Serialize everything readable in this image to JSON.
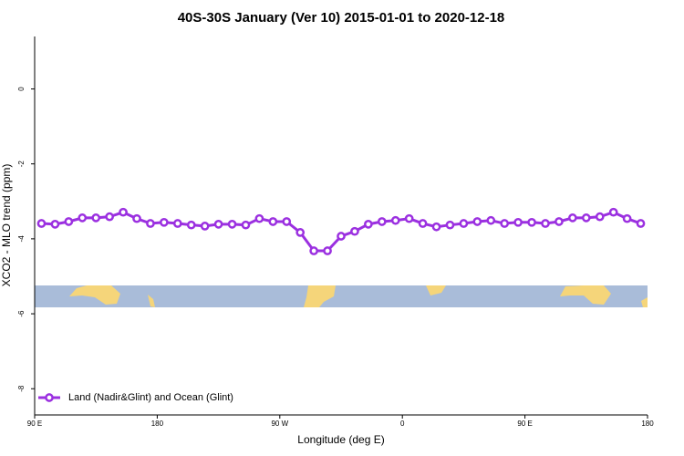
{
  "chart_data": {
    "type": "line",
    "title": "40S-30S January (Ver 10)   2015-01-01 to 2020-12-18",
    "x_label": "Longitude (deg E)",
    "y_label": "XCO2 - MLO trend (ppm)",
    "xlim": [
      90,
      540
    ],
    "ylim": [
      -8.7,
      1.4
    ],
    "xticks": [
      {
        "value": 90,
        "label": "90 E"
      },
      180,
      {
        "value": 270,
        "label": "90 W"
      },
      {
        "value": 360,
        "label": "0"
      },
      {
        "value": 450,
        "label": "90 E"
      },
      {
        "value": 540,
        "label": "180"
      }
    ],
    "yticks": [
      0,
      -2,
      -4,
      -6,
      -8
    ],
    "legend_position": "lower left",
    "x": [
      95,
      105,
      115,
      125,
      135,
      145,
      155,
      165,
      175,
      185,
      195,
      205,
      215,
      225,
      235,
      245,
      255,
      265,
      275,
      285,
      295,
      305,
      315,
      325,
      335,
      345,
      355,
      365,
      375,
      385,
      395,
      405,
      415,
      425,
      435,
      445,
      455,
      465,
      475,
      485,
      495,
      505,
      515,
      525,
      535
    ],
    "series": [
      {
        "name": "Land (Nadir&Glint) and Ocean (Glint)",
        "color": "#9b30e0",
        "values": [
          -3.59,
          -3.61,
          -3.54,
          -3.44,
          -3.44,
          -3.41,
          -3.29,
          -3.46,
          -3.59,
          -3.56,
          -3.59,
          -3.63,
          -3.66,
          -3.61,
          -3.61,
          -3.63,
          -3.46,
          -3.54,
          -3.54,
          -3.83,
          -4.32,
          -4.32,
          -3.93,
          -3.8,
          -3.61,
          -3.54,
          -3.51,
          -3.46,
          -3.59,
          -3.68,
          -3.63,
          -3.59,
          -3.54,
          -3.51,
          -3.59,
          -3.56,
          -3.56,
          -3.59,
          -3.54,
          -3.44,
          -3.44,
          -3.41,
          -3.29,
          -3.46,
          -3.59
        ]
      }
    ]
  }
}
